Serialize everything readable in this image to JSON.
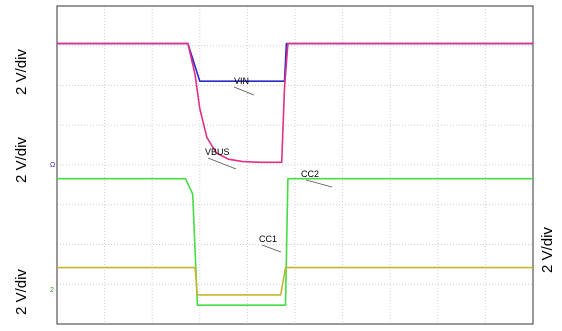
{
  "chart_data": {
    "type": "line",
    "title": "",
    "grid": true,
    "y_scale_labels": [
      "2 V/div",
      "2 V/div",
      "2 V/div",
      "2 V/div"
    ],
    "channel_markers": [
      "Ω",
      "2"
    ],
    "series": [
      {
        "name": "VIN",
        "color": "#2b2bc8",
        "x": [
          0,
          2.75,
          3.0,
          4.7,
          4.78,
          4.82,
          10
        ],
        "y": [
          5.8,
          5.8,
          4.7,
          4.7,
          4.7,
          5.8,
          5.8
        ]
      },
      {
        "name": "VBUS",
        "color": "#e0308a",
        "x": [
          0,
          2.75,
          2.9,
          3.0,
          3.15,
          3.35,
          3.6,
          3.9,
          4.3,
          4.72,
          4.78,
          4.85,
          10
        ],
        "y": [
          5.8,
          5.8,
          4.9,
          3.9,
          3.05,
          2.6,
          2.42,
          2.35,
          2.33,
          2.33,
          4.5,
          5.8,
          5.8
        ]
      },
      {
        "name": "CC2",
        "color": "#44dd44",
        "x": [
          0,
          2.7,
          2.85,
          2.95,
          4.8,
          4.85,
          10
        ],
        "y": [
          1.85,
          1.85,
          1.4,
          -1.85,
          -1.85,
          1.85,
          1.85
        ]
      },
      {
        "name": "CC1",
        "color": "#c8b432",
        "x": [
          0,
          2.9,
          2.95,
          4.7,
          4.8,
          10
        ],
        "y": [
          -0.75,
          -0.75,
          -1.55,
          -1.55,
          -0.75,
          -0.75
        ]
      }
    ],
    "xlim": [
      0,
      10
    ],
    "ylim": [
      -2.4,
      6.9
    ]
  }
}
